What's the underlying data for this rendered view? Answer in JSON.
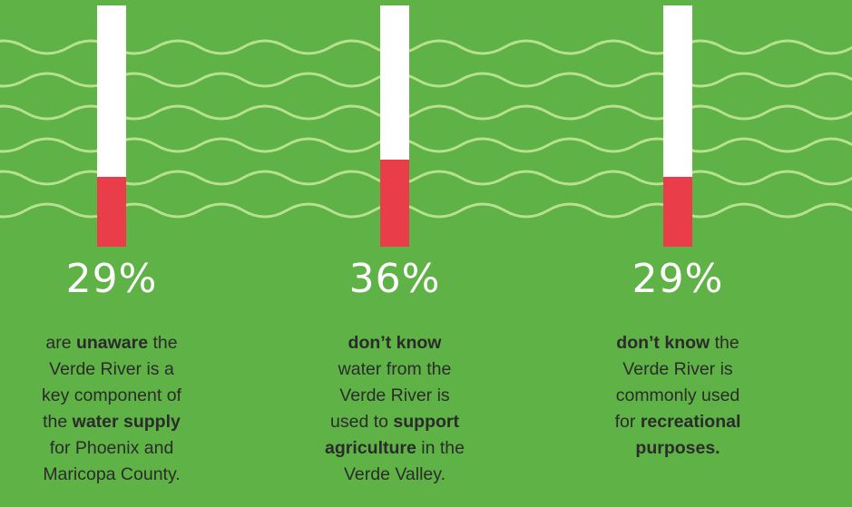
{
  "colors": {
    "background": "#5fb246",
    "wave": "#b7e08f",
    "bar_track": "#ffffff",
    "bar_fill": "#e93d49",
    "text": "#2b2b2b",
    "percent_text": "#ffffff"
  },
  "chart_data": {
    "type": "bar",
    "orientation": "vertical",
    "ylim": [
      0,
      100
    ],
    "values": [
      29,
      36,
      29
    ],
    "labels": [
      "29%",
      "36%",
      "29%"
    ]
  },
  "stats": [
    {
      "percent_label": "29%",
      "value": 29,
      "lines": [
        [
          {
            "t": "are ",
            "b": false
          },
          {
            "t": "unaware",
            "b": true
          },
          {
            "t": " the",
            "b": false
          }
        ],
        [
          {
            "t": "Verde River is a",
            "b": false
          }
        ],
        [
          {
            "t": "key component of",
            "b": false
          }
        ],
        [
          {
            "t": "the ",
            "b": false
          },
          {
            "t": "water supply",
            "b": true
          }
        ],
        [
          {
            "t": "for Phoenix and",
            "b": false
          }
        ],
        [
          {
            "t": "Maricopa County.",
            "b": false
          }
        ]
      ]
    },
    {
      "percent_label": "36%",
      "value": 36,
      "lines": [
        [
          {
            "t": "don’t know",
            "b": true
          }
        ],
        [
          {
            "t": "water from the",
            "b": false
          }
        ],
        [
          {
            "t": "Verde River is",
            "b": false
          }
        ],
        [
          {
            "t": "used to ",
            "b": false
          },
          {
            "t": "support",
            "b": true
          }
        ],
        [
          {
            "t": "agriculture",
            "b": true
          },
          {
            "t": " in the",
            "b": false
          }
        ],
        [
          {
            "t": "Verde Valley.",
            "b": false
          }
        ]
      ]
    },
    {
      "percent_label": "29%",
      "value": 29,
      "lines": [
        [
          {
            "t": "don’t know",
            "b": true
          },
          {
            "t": " the",
            "b": false
          }
        ],
        [
          {
            "t": "Verde River is",
            "b": false
          }
        ],
        [
          {
            "t": "commonly used",
            "b": false
          }
        ],
        [
          {
            "t": "for ",
            "b": false
          },
          {
            "t": "recreational",
            "b": true
          }
        ],
        [
          {
            "t": "purposes.",
            "b": true
          }
        ]
      ]
    }
  ]
}
